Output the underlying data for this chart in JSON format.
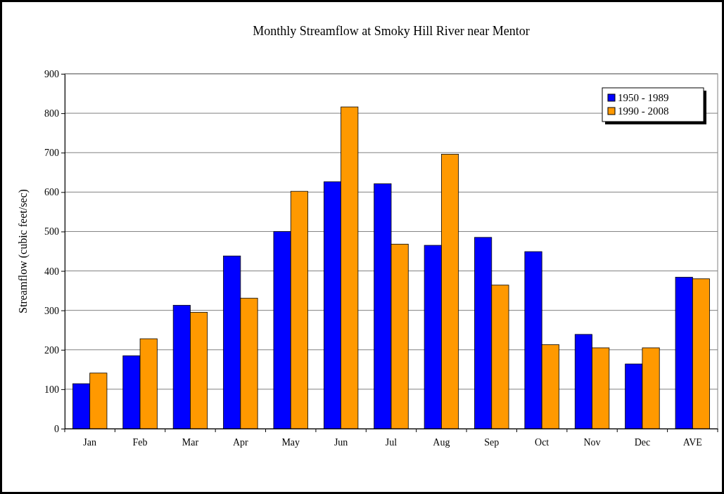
{
  "chart_data": {
    "type": "bar",
    "title": "Monthly Streamflow at Smoky Hill River near Mentor",
    "ylabel": "Streamflow (cubic feet/sec)",
    "categories": [
      "Jan",
      "Feb",
      "Mar",
      "Apr",
      "May",
      "Jun",
      "Jul",
      "Aug",
      "Sep",
      "Oct",
      "Nov",
      "Dec",
      "AVE"
    ],
    "series": [
      {
        "name": "1950 - 1989",
        "color": "#0000ff",
        "values": [
          114,
          185,
          313,
          438,
          500,
          626,
          621,
          465,
          485,
          449,
          239,
          164,
          384
        ]
      },
      {
        "name": "1990 - 2008",
        "color": "#ff9900",
        "values": [
          141,
          228,
          295,
          331,
          602,
          816,
          468,
          696,
          364,
          213,
          205,
          205,
          380
        ]
      }
    ],
    "ylim": [
      0,
      900
    ],
    "yticks": [
      0,
      100,
      200,
      300,
      400,
      500,
      600,
      700,
      800,
      900
    ],
    "grid": "y",
    "legend": "top right"
  }
}
